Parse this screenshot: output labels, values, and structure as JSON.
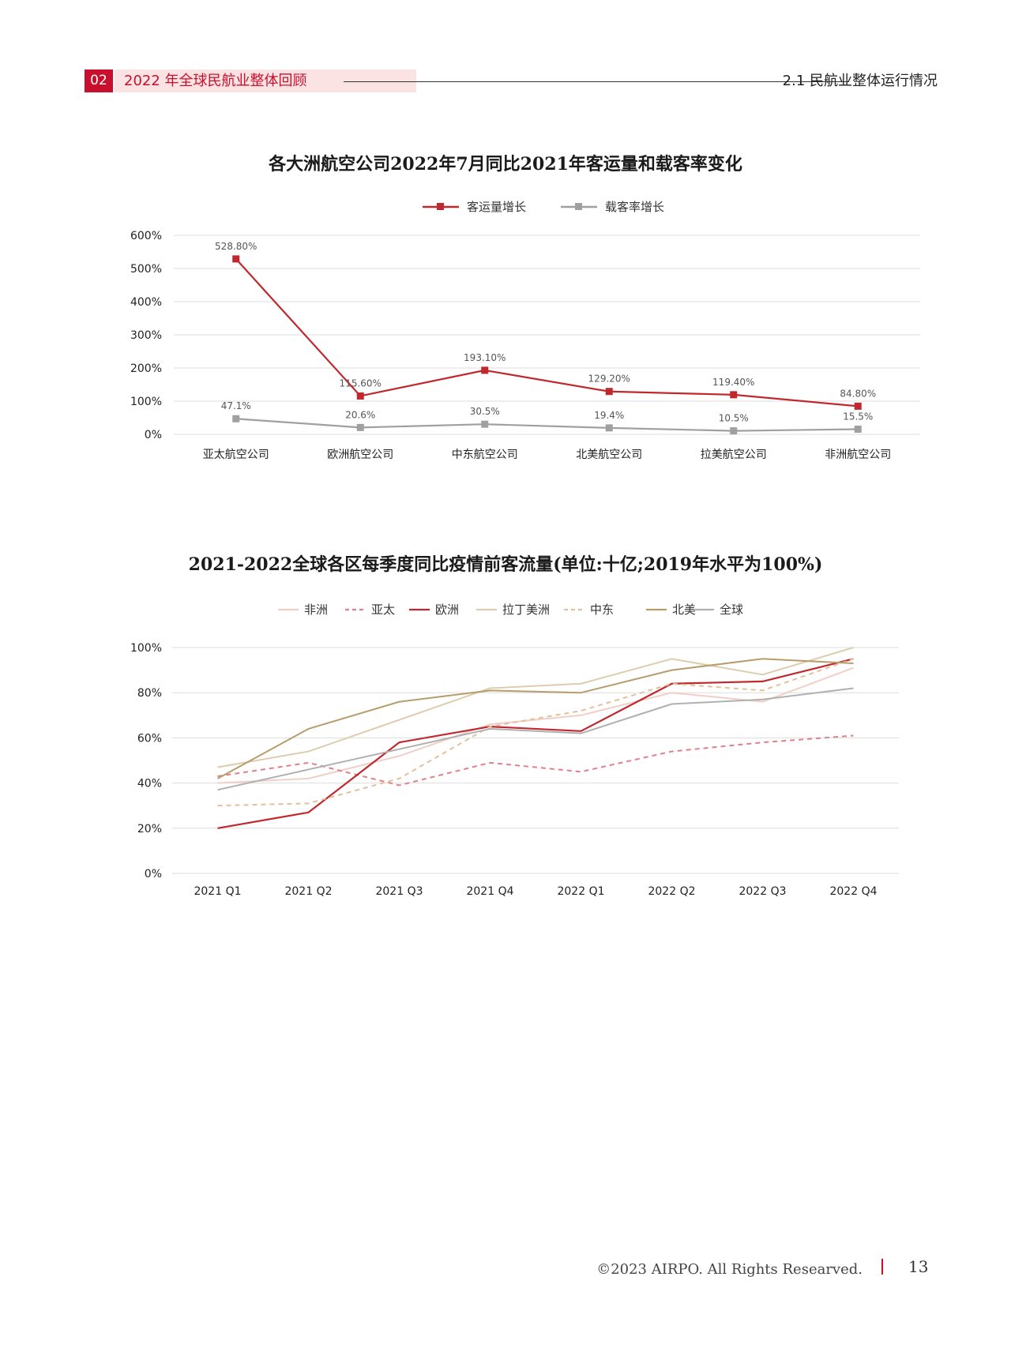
{
  "header": {
    "chapter_num": "02",
    "chapter_title": "2022 年全球民航业整体回顾",
    "section_title": "2.1 民航业整体运行情况"
  },
  "chart_data": [
    {
      "type": "line",
      "title": "各大洲航空公司2022年7月同比2021年客运量和载客率变化",
      "categories": [
        "亚太航空公司",
        "欧洲航空公司",
        "中东航空公司",
        "北美航空公司",
        "拉美航空公司",
        "非洲航空公司"
      ],
      "series": [
        {
          "name": "客运量增长",
          "color": "#c0282d",
          "values": [
            528.8,
            115.6,
            193.1,
            129.2,
            119.4,
            84.8
          ],
          "labels": [
            "528.80%",
            "115.60%",
            "193.10%",
            "129.20%",
            "119.40%",
            "84.80%"
          ]
        },
        {
          "name": "载客率增长",
          "color": "#a0a0a0",
          "values": [
            47.1,
            20.6,
            30.5,
            19.4,
            10.5,
            15.5
          ],
          "labels": [
            "47.1%",
            "20.6%",
            "30.5%",
            "19.4%",
            "10.5%",
            "15.5%"
          ]
        }
      ],
      "ylim": [
        0,
        600
      ],
      "yticks": [
        "0%",
        "100%",
        "200%",
        "300%",
        "400%",
        "500%",
        "600%"
      ],
      "grid": true,
      "legend": "top"
    },
    {
      "type": "line",
      "title": "2021-2022全球各区每季度同比疫情前客流量(单位:十亿;2019年水平为100%)",
      "categories": [
        "2021 Q1",
        "2021 Q2",
        "2021 Q3",
        "2021 Q4",
        "2022 Q1",
        "2022 Q2",
        "2022 Q3",
        "2022 Q4"
      ],
      "series": [
        {
          "name": "非洲",
          "color": "#f0cfc8",
          "dashed": false,
          "values": [
            40,
            42,
            52,
            66,
            70,
            80,
            76,
            91
          ]
        },
        {
          "name": "亚太",
          "color": "#e0808a",
          "dashed": true,
          "values": [
            43,
            49,
            39,
            49,
            45,
            54,
            58,
            61
          ]
        },
        {
          "name": "欧洲",
          "color": "#c0282d",
          "dashed": false,
          "values": [
            20,
            27,
            58,
            65,
            63,
            84,
            85,
            95
          ]
        },
        {
          "name": "拉丁美洲",
          "color": "#dccdae",
          "dashed": false,
          "values": [
            47,
            54,
            68,
            82,
            84,
            95,
            88,
            100
          ]
        },
        {
          "name": "中东",
          "color": "#e3c09a",
          "dashed": true,
          "values": [
            30,
            31,
            42,
            65,
            72,
            84,
            81,
            95
          ]
        },
        {
          "name": "北美",
          "color": "#b79c6c",
          "dashed": false,
          "values": [
            42,
            64,
            76,
            81,
            80,
            90,
            95,
            93
          ]
        },
        {
          "name": "全球",
          "color": "#b0b0b0",
          "dashed": false,
          "values": [
            37,
            46,
            55,
            64,
            62,
            75,
            77,
            82
          ]
        }
      ],
      "ylim": [
        0,
        100
      ],
      "yticks": [
        "0%",
        "20%",
        "40%",
        "60%",
        "80%",
        "100%"
      ],
      "grid": true,
      "legend": "top"
    }
  ],
  "footer": {
    "copyright": "©2023 AIRPO. All Rights Researved.",
    "page_number": "13"
  }
}
